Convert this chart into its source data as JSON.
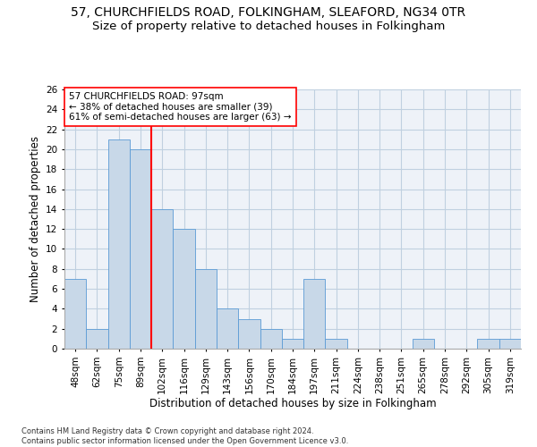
{
  "title_line1": "57, CHURCHFIELDS ROAD, FOLKINGHAM, SLEAFORD, NG34 0TR",
  "title_line2": "Size of property relative to detached houses in Folkingham",
  "xlabel": "Distribution of detached houses by size in Folkingham",
  "ylabel": "Number of detached properties",
  "categories": [
    "48sqm",
    "62sqm",
    "75sqm",
    "89sqm",
    "102sqm",
    "116sqm",
    "129sqm",
    "143sqm",
    "156sqm",
    "170sqm",
    "184sqm",
    "197sqm",
    "211sqm",
    "224sqm",
    "238sqm",
    "251sqm",
    "265sqm",
    "278sqm",
    "292sqm",
    "305sqm",
    "319sqm"
  ],
  "values": [
    7,
    2,
    21,
    20,
    14,
    12,
    8,
    4,
    3,
    2,
    1,
    7,
    1,
    0,
    0,
    0,
    1,
    0,
    0,
    1,
    1
  ],
  "bar_color": "#c8d8e8",
  "bar_edge_color": "#5b9bd5",
  "reference_line_x": 4.0,
  "annotation_text": "57 CHURCHFIELDS ROAD: 97sqm\n← 38% of detached houses are smaller (39)\n61% of semi-detached houses are larger (63) →",
  "annotation_box_color": "white",
  "annotation_box_edge_color": "red",
  "ref_line_color": "red",
  "ylim": [
    0,
    26
  ],
  "yticks": [
    0,
    2,
    4,
    6,
    8,
    10,
    12,
    14,
    16,
    18,
    20,
    22,
    24,
    26
  ],
  "grid_color": "#c0d0e0",
  "background_color": "#eef2f8",
  "footnote": "Contains HM Land Registry data © Crown copyright and database right 2024.\nContains public sector information licensed under the Open Government Licence v3.0.",
  "title_fontsize": 10,
  "subtitle_fontsize": 9.5,
  "tick_fontsize": 7.5,
  "ylabel_fontsize": 8.5,
  "xlabel_fontsize": 8.5,
  "annot_fontsize": 7.5,
  "footnote_fontsize": 6
}
